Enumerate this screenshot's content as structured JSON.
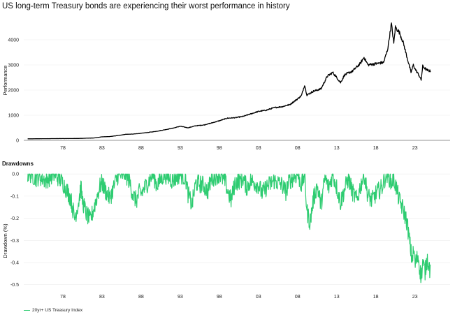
{
  "chart_title": "US long-term Treasury bonds are experiencing their worst performance in history",
  "legend_label": "20yr+ US Treasury Index",
  "colors": {
    "performance": "#000000",
    "drawdown": "#2ecc71",
    "grid": "#ececec"
  },
  "chart_data": [
    {
      "type": "line",
      "title": "",
      "xlabel": "",
      "ylabel": "Performance",
      "xlim": [
        1973.0,
        2027.5
      ],
      "ylim": [
        0,
        4750
      ],
      "x_ticks": [
        "78",
        "83",
        "88",
        "93",
        "98",
        "03",
        "08",
        "13",
        "18",
        "23"
      ],
      "y_ticks": [
        "0",
        "1000",
        "2000",
        "3000",
        "4000"
      ],
      "grid": true,
      "series": [
        {
          "x": [
            1973.5,
            1975,
            1977,
            1979,
            1980,
            1981,
            1982,
            1983,
            1984,
            1985,
            1986,
            1987,
            1988,
            1989,
            1990,
            1991,
            1992,
            1993,
            1994,
            1995,
            1996,
            1997,
            1998,
            1999,
            2000,
            2001,
            2002,
            2003,
            2004,
            2005,
            2006,
            2007,
            2008,
            2008.5,
            2008.9,
            2009.2,
            2010,
            2011,
            2011.8,
            2012.5,
            2013,
            2013.5,
            2014,
            2015,
            2016,
            2016.5,
            2017,
            2018,
            2019,
            2019.5,
            2020,
            2020.3,
            2020.5,
            2021,
            2021.5,
            2022,
            2022.5,
            2022.8,
            2023,
            2023.5,
            2023.8,
            2024,
            2024.5,
            2025
          ],
          "y": [
            60,
            65,
            70,
            72,
            75,
            85,
            95,
            140,
            150,
            190,
            240,
            250,
            280,
            320,
            360,
            420,
            480,
            560,
            500,
            580,
            610,
            690,
            780,
            880,
            900,
            950,
            1050,
            1150,
            1200,
            1300,
            1340,
            1420,
            1650,
            1780,
            2200,
            1800,
            1950,
            2050,
            2550,
            2700,
            2500,
            2300,
            2600,
            2750,
            3050,
            3300,
            3000,
            3050,
            3100,
            3600,
            4650,
            3850,
            4500,
            4300,
            3900,
            3300,
            2700,
            3000,
            2850,
            2600,
            2400,
            2950,
            2800,
            2750
          ]
        }
      ]
    },
    {
      "type": "line",
      "title": "Drawdowns",
      "xlabel": "",
      "ylabel": "Drawdown (%)",
      "xlim": [
        1973.0,
        2027.5
      ],
      "ylim": [
        -0.52,
        0.01
      ],
      "x_ticks": [
        "78",
        "83",
        "88",
        "93",
        "98",
        "03",
        "08",
        "13",
        "18",
        "23"
      ],
      "y_ticks": [
        "0.0",
        "-0.1",
        "-0.2",
        "-0.3",
        "-0.4",
        "-0.5"
      ],
      "grid": true,
      "series": [
        {
          "name": "20yr+ US Treasury Index",
          "x": [
            1973.5,
            1974,
            1974.5,
            1975,
            1975.8,
            1976.5,
            1977,
            1977.5,
            1978,
            1978.6,
            1979,
            1979.5,
            1980,
            1980.3,
            1980.5,
            1981,
            1981.5,
            1982,
            1982.7,
            1983,
            1983.5,
            1984,
            1984.5,
            1985,
            1986,
            1986.5,
            1987,
            1987.4,
            1987.8,
            1988,
            1989,
            1989.5,
            1990,
            1990.6,
            1991,
            1992,
            1993,
            1993.7,
            1994,
            1994.5,
            1995,
            1996,
            1996.5,
            1997,
            1998,
            1998.8,
            1999,
            1999.5,
            2000,
            2001,
            2001.5,
            2002,
            2003,
            2003.5,
            2004,
            2005,
            2006,
            2006.5,
            2007,
            2008,
            2008.5,
            2008.9,
            2009.2,
            2009.6,
            2010,
            2010.5,
            2011,
            2011.5,
            2012,
            2012.5,
            2013,
            2013.5,
            2014,
            2014.5,
            2015,
            2015.6,
            2016,
            2016.5,
            2017,
            2017.5,
            2018,
            2018.8,
            2019,
            2019.5,
            2020,
            2020.3,
            2020.6,
            2021,
            2021.5,
            2022,
            2022.3,
            2022.6,
            2022.9,
            2023,
            2023.4,
            2023.8,
            2024,
            2024.3,
            2024.6,
            2024.9,
            2025
          ],
          "y": [
            0,
            0,
            -0.02,
            -0.01,
            -0.03,
            -0.01,
            0,
            -0.02,
            -0.04,
            -0.08,
            -0.11,
            -0.2,
            -0.13,
            -0.06,
            -0.12,
            -0.18,
            -0.21,
            -0.15,
            -0.06,
            -0.04,
            -0.08,
            -0.11,
            -0.06,
            -0.01,
            0,
            -0.03,
            -0.1,
            -0.12,
            -0.08,
            -0.09,
            -0.03,
            0,
            -0.05,
            -0.02,
            0,
            -0.03,
            0,
            -0.02,
            -0.09,
            -0.14,
            -0.04,
            -0.05,
            -0.08,
            -0.02,
            0,
            -0.04,
            -0.07,
            -0.12,
            -0.04,
            -0.02,
            -0.06,
            -0.03,
            -0.05,
            -0.09,
            -0.06,
            -0.03,
            -0.05,
            -0.08,
            -0.03,
            0,
            -0.05,
            0,
            -0.17,
            -0.22,
            -0.12,
            -0.05,
            -0.14,
            -0.02,
            -0.06,
            0,
            -0.06,
            -0.13,
            -0.07,
            -0.02,
            -0.08,
            -0.12,
            -0.06,
            0,
            -0.1,
            -0.12,
            -0.09,
            -0.06,
            -0.03,
            0,
            -0.04,
            -0.02,
            -0.06,
            -0.12,
            -0.16,
            -0.22,
            -0.3,
            -0.38,
            -0.35,
            -0.41,
            -0.37,
            -0.47,
            -0.4,
            -0.44,
            -0.38,
            -0.43,
            -0.41
          ]
        }
      ]
    }
  ]
}
